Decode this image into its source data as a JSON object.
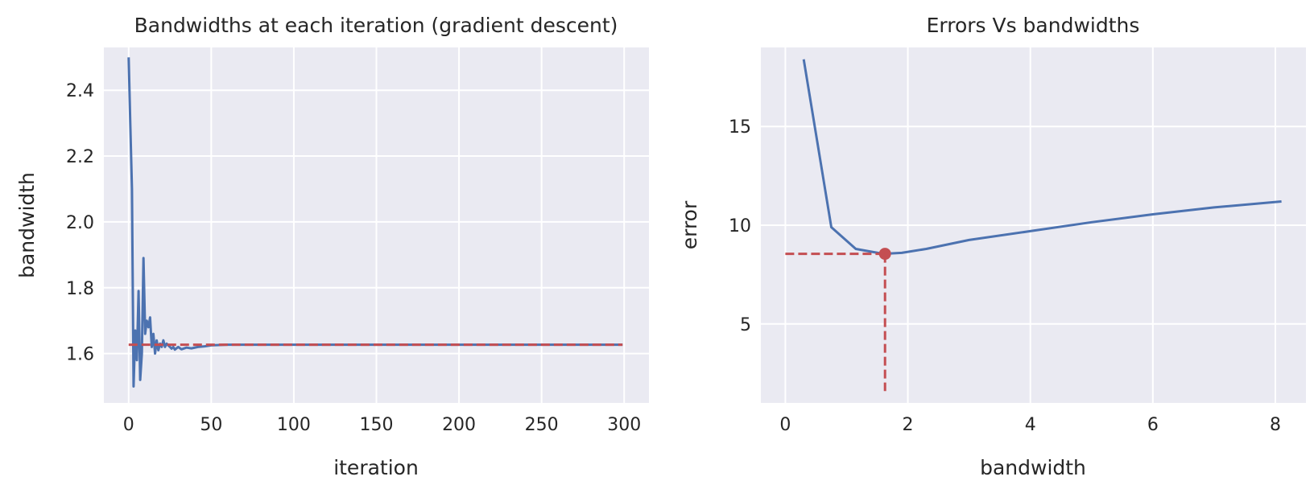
{
  "colors": {
    "line": "#4c72b0",
    "ref": "#c44e52",
    "background": "#eaeaf2",
    "grid": "#ffffff"
  },
  "chart_data": [
    {
      "type": "line",
      "title": "Bandwidths at each iteration (gradient descent)",
      "xlabel": "iteration",
      "ylabel": "bandwidth",
      "xlim": [
        -15,
        315
      ],
      "ylim": [
        1.45,
        2.53
      ],
      "xticks": [
        0,
        50,
        100,
        150,
        200,
        250,
        300
      ],
      "yticks": [
        1.6,
        1.8,
        2.0,
        2.2,
        2.4
      ],
      "ytick_decimals": 1,
      "grid": true,
      "series": [
        {
          "name": "bandwidth",
          "style": "solid",
          "x": [
            0,
            1,
            2,
            3,
            4,
            5,
            6,
            7,
            8,
            9,
            10,
            11,
            12,
            13,
            14,
            15,
            16,
            17,
            18,
            19,
            20,
            21,
            22,
            23,
            24,
            25,
            26,
            27,
            28,
            30,
            32,
            35,
            38,
            42,
            46,
            50,
            55,
            60,
            80,
            120,
            200,
            299
          ],
          "y": [
            2.5,
            2.3,
            2.1,
            1.5,
            1.67,
            1.58,
            1.79,
            1.52,
            1.6,
            1.89,
            1.66,
            1.7,
            1.68,
            1.71,
            1.62,
            1.66,
            1.6,
            1.64,
            1.61,
            1.63,
            1.62,
            1.64,
            1.62,
            1.63,
            1.625,
            1.62,
            1.615,
            1.62,
            1.612,
            1.62,
            1.613,
            1.618,
            1.616,
            1.62,
            1.622,
            1.625,
            1.626,
            1.627,
            1.627,
            1.627,
            1.627,
            1.627
          ]
        },
        {
          "name": "optimal bandwidth",
          "style": "dashed",
          "x": [
            0,
            299
          ],
          "y": [
            1.627,
            1.627
          ]
        }
      ]
    },
    {
      "type": "line",
      "title": "Errors Vs bandwidths",
      "xlabel": "bandwidth",
      "ylabel": "error",
      "xlim": [
        -0.4,
        8.5
      ],
      "ylim": [
        1.0,
        19.0
      ],
      "xticks": [
        0,
        2,
        4,
        6,
        8
      ],
      "yticks": [
        5,
        10,
        15
      ],
      "ytick_decimals": 0,
      "grid": true,
      "series": [
        {
          "name": "error",
          "style": "solid",
          "x": [
            0.3,
            0.75,
            1.15,
            1.6,
            1.9,
            2.3,
            3.0,
            4.0,
            5.0,
            6.0,
            7.0,
            8.1
          ],
          "y": [
            18.4,
            9.9,
            8.8,
            8.55,
            8.6,
            8.8,
            9.25,
            9.7,
            10.15,
            10.55,
            10.9,
            11.2
          ]
        },
        {
          "name": "minimum",
          "style": "marker",
          "x": [
            1.627
          ],
          "y": [
            8.55
          ]
        },
        {
          "name": "horizontal reference",
          "style": "dashed",
          "x": [
            0,
            1.627
          ],
          "y": [
            8.55,
            8.55
          ]
        },
        {
          "name": "vertical reference",
          "style": "dashed",
          "x": [
            1.627,
            1.627
          ],
          "y": [
            8.55,
            1.6
          ]
        }
      ]
    }
  ]
}
